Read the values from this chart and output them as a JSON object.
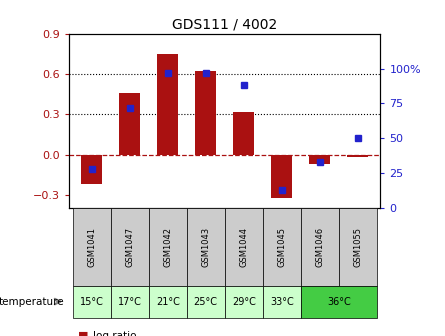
{
  "title": "GDS111 / 4002",
  "samples": [
    "GSM1041",
    "GSM1047",
    "GSM1042",
    "GSM1043",
    "GSM1044",
    "GSM1045",
    "GSM1046",
    "GSM1055"
  ],
  "temp_groups": [
    {
      "label": "15°C",
      "cols": [
        0
      ],
      "color": "#ccffcc"
    },
    {
      "label": "17°C",
      "cols": [
        1
      ],
      "color": "#ccffcc"
    },
    {
      "label": "21°C",
      "cols": [
        2
      ],
      "color": "#ccffcc"
    },
    {
      "label": "25°C",
      "cols": [
        3
      ],
      "color": "#ccffcc"
    },
    {
      "label": "29°C",
      "cols": [
        4
      ],
      "color": "#ccffcc"
    },
    {
      "label": "33°C",
      "cols": [
        5
      ],
      "color": "#ccffcc"
    },
    {
      "label": "36°C",
      "cols": [
        6,
        7
      ],
      "color": "#44cc44"
    }
  ],
  "log_ratio": [
    -0.22,
    0.46,
    0.75,
    0.62,
    0.32,
    -0.32,
    -0.07,
    -0.02
  ],
  "percentile_rank": [
    28,
    72,
    97,
    97,
    88,
    13,
    33,
    50
  ],
  "ylim_left": [
    -0.4,
    0.9
  ],
  "ylim_right": [
    0,
    125
  ],
  "yticks_left": [
    -0.3,
    0.0,
    0.3,
    0.6,
    0.9
  ],
  "yticks_right": [
    0,
    25,
    50,
    75,
    100
  ],
  "bar_color": "#aa1111",
  "dot_color": "#2222cc",
  "dotted_lines": [
    0.3,
    0.6
  ],
  "bar_width": 0.55,
  "gsm_bg_color": "#cccccc",
  "temp_light_color": "#ccffcc",
  "temp_dark_color": "#44cc44"
}
